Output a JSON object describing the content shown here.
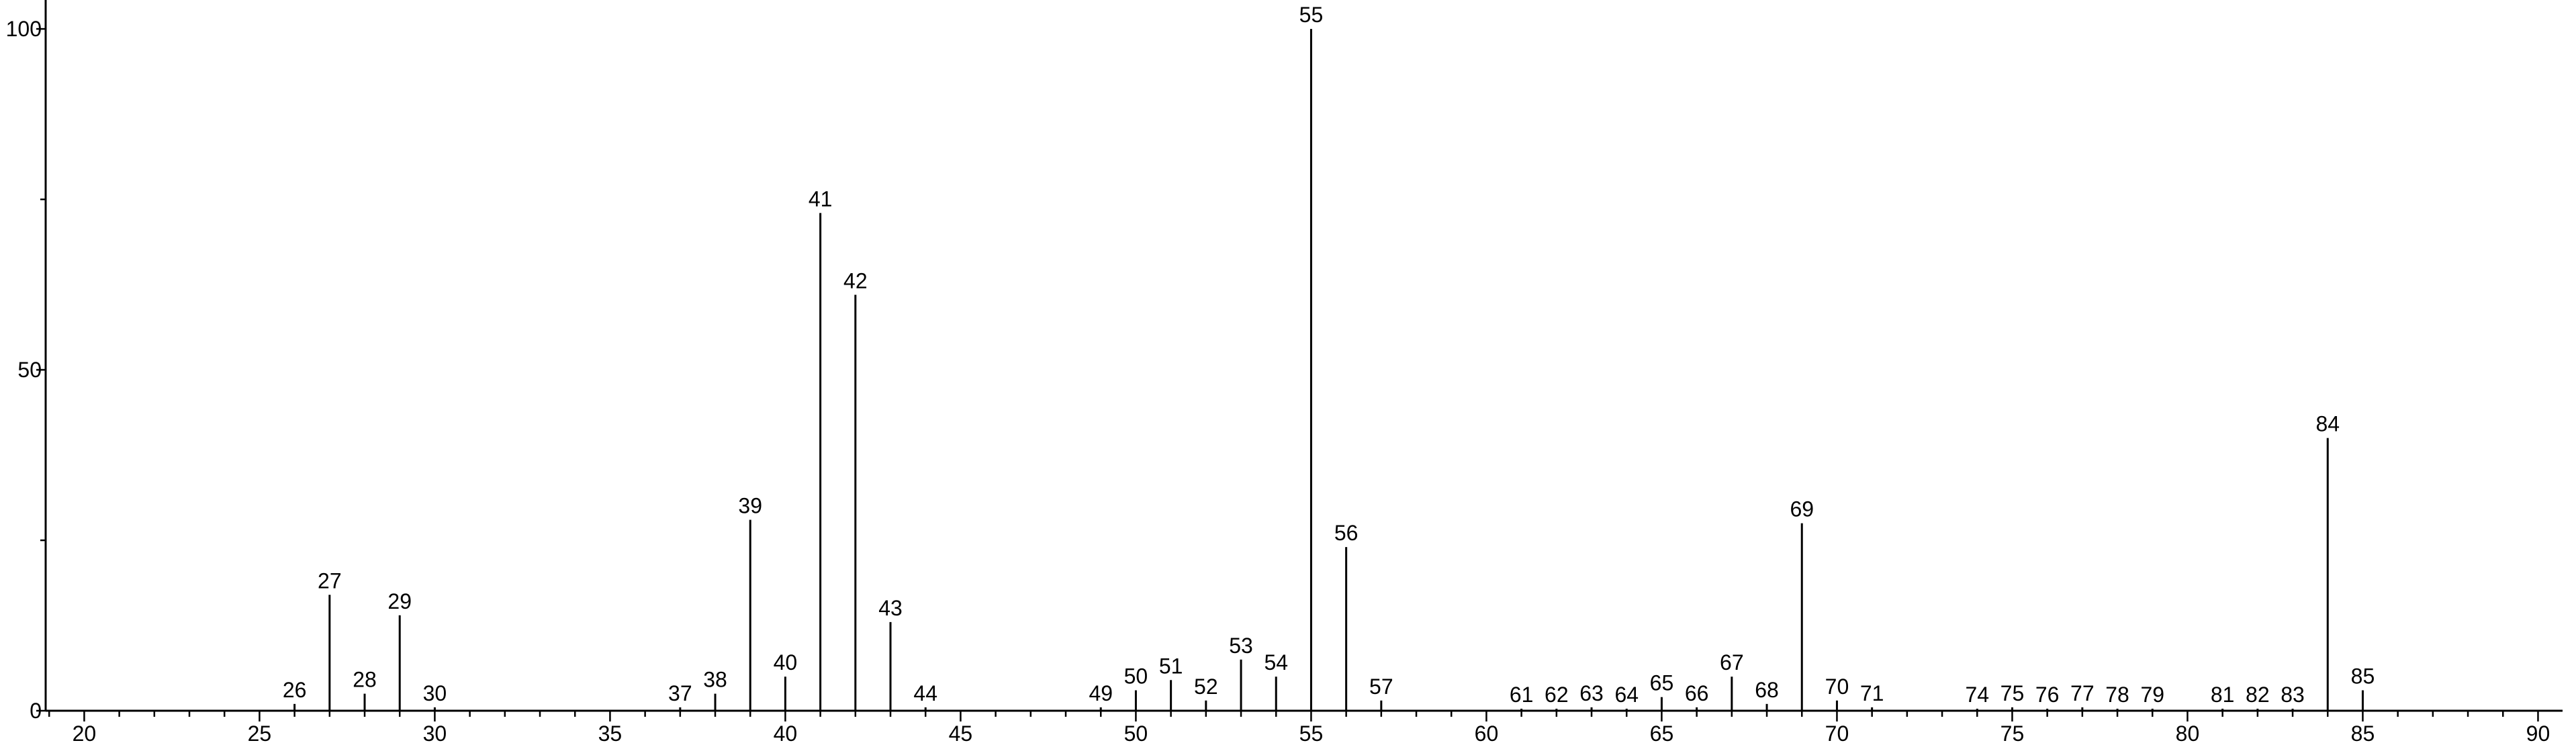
{
  "chart_data": {
    "type": "stem",
    "x": [
      26,
      27,
      28,
      29,
      30,
      37,
      38,
      39,
      40,
      41,
      42,
      43,
      44,
      49,
      50,
      51,
      52,
      53,
      54,
      55,
      56,
      57,
      61,
      62,
      63,
      64,
      65,
      66,
      67,
      68,
      69,
      70,
      71,
      74,
      75,
      76,
      77,
      78,
      79,
      81,
      82,
      83,
      84,
      85
    ],
    "values": [
      1,
      17,
      2.5,
      14,
      0.5,
      0.5,
      2.5,
      28,
      5,
      73,
      61,
      13,
      0.5,
      0.5,
      3,
      4.5,
      1.5,
      7.5,
      5,
      100,
      24,
      1.5,
      0.3,
      0.3,
      0.5,
      0.3,
      2,
      0.5,
      5,
      1,
      27.5,
      1.5,
      0.5,
      0.3,
      0.5,
      0.3,
      0.5,
      0.3,
      0.3,
      0.3,
      0.3,
      0.3,
      40,
      3
    ],
    "color": "#000000",
    "xlim": [
      18.9,
      90.7
    ],
    "ylim": [
      0,
      103
    ],
    "xticks": [
      20,
      25,
      30,
      35,
      40,
      45,
      50,
      55,
      60,
      65,
      70,
      75,
      80,
      85,
      90
    ],
    "x_minor_ticks": [
      19,
      21,
      22,
      23,
      24,
      26,
      27,
      28,
      29,
      31,
      32,
      33,
      34,
      36,
      37,
      38,
      39,
      41,
      42,
      43,
      44,
      46,
      47,
      48,
      49,
      51,
      52,
      53,
      54,
      56,
      57,
      58,
      59,
      61,
      62,
      63,
      64,
      66,
      67,
      68,
      69,
      71,
      72,
      73,
      74,
      76,
      77,
      78,
      79,
      81,
      82,
      83,
      84,
      86,
      87,
      88,
      89
    ],
    "yticks": [
      0,
      50,
      100
    ],
    "y_minor_ticks": [
      25,
      75
    ],
    "grid": false
  }
}
